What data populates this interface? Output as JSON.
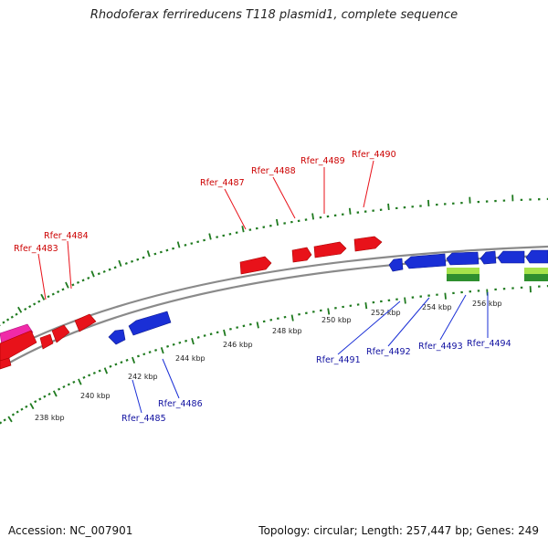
{
  "title": "Rhodoferax ferrireducens T118 plasmid1, complete sequence",
  "accession": "Accession: NC_007901",
  "summary": "Topology: circular; Length: 257,447 bp; Genes: 249",
  "colors": {
    "forward": "#e8121a",
    "reverse": "#1a2fd6",
    "forward_label": "#cc0000",
    "reverse_label": "#1010a0",
    "ticks": "#1f7a1f",
    "backbone": "#808080",
    "pink": "#f02aa8",
    "green": "#a6e34a"
  },
  "ticks": [
    {
      "label": "238 kbp"
    },
    {
      "label": "240 kbp"
    },
    {
      "label": "242 kbp"
    },
    {
      "label": "244 kbp"
    },
    {
      "label": "246 kbp"
    },
    {
      "label": "248 kbp"
    },
    {
      "label": "250 kbp"
    },
    {
      "label": "252 kbp"
    },
    {
      "label": "254 kbp"
    },
    {
      "label": "256 kbp"
    }
  ],
  "forward_genes": [
    {
      "name": "Rfer_4483"
    },
    {
      "name": "Rfer_4484"
    },
    {
      "name": "Rfer_4487"
    },
    {
      "name": "Rfer_4488"
    },
    {
      "name": "Rfer_4489"
    },
    {
      "name": "Rfer_4490"
    }
  ],
  "reverse_genes": [
    {
      "name": "Rfer_4485"
    },
    {
      "name": "Rfer_4486"
    },
    {
      "name": "Rfer_4491"
    },
    {
      "name": "Rfer_4492"
    },
    {
      "name": "Rfer_4493"
    },
    {
      "name": "Rfer_4494"
    }
  ]
}
